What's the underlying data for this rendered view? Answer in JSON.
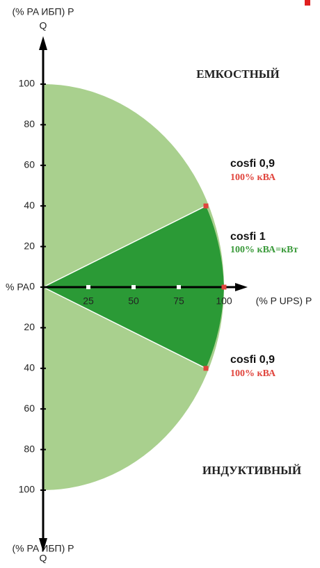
{
  "chart_data": {
    "type": "capability",
    "y_axis_label": "(% PA ИБП) P",
    "y_axis_symbol": "Q",
    "y_axis_label_bottom": "(% PA ИБП) P",
    "y_axis_symbol_bottom": "Q",
    "x_axis_label": "(% P UPS) P",
    "origin_label": "% PA",
    "xlim": [
      0,
      100
    ],
    "ylim": [
      -100,
      100
    ],
    "xticks": [
      25,
      50,
      75,
      100
    ],
    "yticks": [
      0,
      20,
      40,
      60,
      80,
      100,
      {
        "value": -20,
        "label": "20"
      },
      {
        "value": -40,
        "label": "40"
      },
      {
        "value": -60,
        "label": "60"
      },
      {
        "value": -80,
        "label": "80"
      },
      {
        "value": -100,
        "label": "100"
      }
    ],
    "region_labels": [
      "ЕМКОСТНЫЙ",
      "ИНДУКТИВНЫЙ"
    ],
    "area_color": "#a9d08e",
    "sector_color": "#2b9a36",
    "point_color": "#e0443c",
    "points": [
      {
        "name": "cosfi 0,9",
        "label": "100% кВА",
        "x": 90,
        "y": 40
      },
      {
        "name": "cosfi 1",
        "label": "100% кВА=кВт",
        "x": 100,
        "y": 0
      },
      {
        "name": "cosfi 0,9",
        "label": "100% кВА",
        "x": 90,
        "y": -40
      }
    ]
  }
}
